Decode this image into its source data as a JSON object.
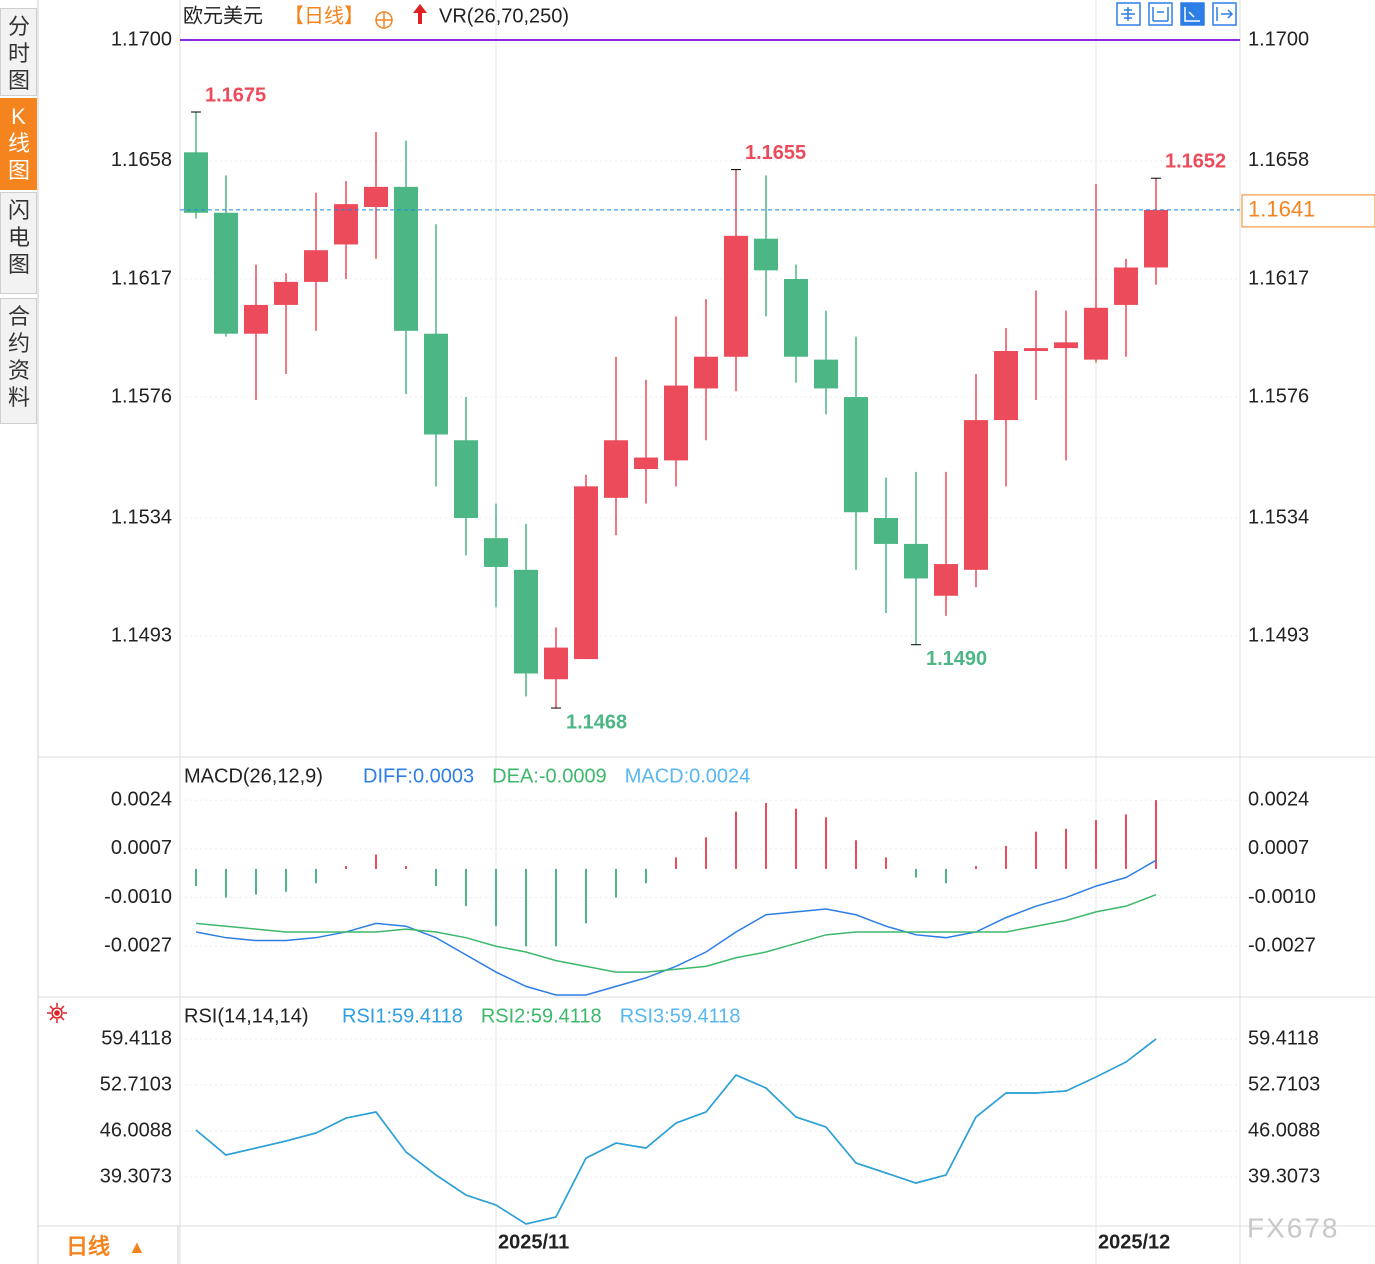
{
  "sidebar_tabs": [
    "分时图",
    "K线图",
    "闪电图",
    "合约资料"
  ],
  "period_tab": "日线",
  "watermark": "FX678",
  "chart_data": [
    {
      "type": "candlestick",
      "title": "欧元美元",
      "period": "【日线】",
      "indicator": "VR(26,70,250)",
      "ylim": [
        1.1451,
        1.17
      ],
      "yticks": [
        {
          "value": 1.17,
          "label": "1.1700"
        },
        1.1658,
        1.1617,
        1.1576,
        1.1534,
        1.1493
      ],
      "open": [
        1.1661,
        1.164,
        1.1598,
        1.1608,
        1.1616,
        1.1629,
        1.1642,
        1.1649,
        1.1598,
        1.1561,
        1.1527,
        1.1516,
        1.1478,
        1.1485,
        1.1541,
        1.1551,
        1.1554,
        1.1579,
        1.159,
        1.1631,
        1.1617,
        1.1589,
        1.1576,
        1.1534,
        1.1525,
        1.1507,
        1.1516,
        1.1568,
        1.1592,
        1.1593,
        1.1589,
        1.1608,
        1.1621
      ],
      "high": [
        1.1675,
        1.1653,
        1.1622,
        1.1619,
        1.1647,
        1.1651,
        1.1668,
        1.1665,
        1.1636,
        1.1576,
        1.1539,
        1.1532,
        1.1496,
        1.1549,
        1.159,
        1.1582,
        1.1604,
        1.161,
        1.1655,
        1.1653,
        1.1622,
        1.1606,
        1.1597,
        1.1548,
        1.155,
        1.155,
        1.1584,
        1.16,
        1.1613,
        1.1606,
        1.165,
        1.1624,
        1.1652
      ],
      "low": [
        1.1638,
        1.1597,
        1.1575,
        1.1584,
        1.1599,
        1.1617,
        1.1624,
        1.1577,
        1.1545,
        1.1521,
        1.1503,
        1.1472,
        1.1468,
        1.1485,
        1.1528,
        1.1539,
        1.1545,
        1.1561,
        1.1578,
        1.1604,
        1.1581,
        1.157,
        1.1516,
        1.1501,
        1.149,
        1.15,
        1.151,
        1.1545,
        1.1575,
        1.1554,
        1.1588,
        1.159,
        1.1615
      ],
      "close": [
        1.164,
        1.1598,
        1.1608,
        1.1616,
        1.1627,
        1.1643,
        1.1649,
        1.1599,
        1.1563,
        1.1534,
        1.1517,
        1.148,
        1.1489,
        1.1545,
        1.1561,
        1.1555,
        1.158,
        1.159,
        1.1632,
        1.162,
        1.159,
        1.1579,
        1.1536,
        1.1525,
        1.1513,
        1.1518,
        1.1568,
        1.1592,
        1.1593,
        1.1595,
        1.1607,
        1.1621,
        1.1641
      ],
      "high_value_labels": [
        "1.1675",
        null,
        null,
        null,
        null,
        null,
        null,
        null,
        null,
        null,
        null,
        null,
        null,
        null,
        null,
        null,
        null,
        null,
        "1.1655",
        null,
        null,
        null,
        null,
        null,
        null,
        null,
        null,
        null,
        null,
        null,
        null,
        null,
        "1.1652"
      ],
      "low_value_labels": [
        null,
        null,
        null,
        null,
        null,
        null,
        null,
        null,
        null,
        null,
        null,
        null,
        "1.1468",
        null,
        null,
        null,
        null,
        null,
        null,
        null,
        null,
        null,
        null,
        null,
        "1.1490",
        null,
        null,
        null,
        null,
        null,
        null,
        null,
        null
      ],
      "up_color": "#eb4b5a",
      "down_color": "#4cb784",
      "last_price": 1.1641,
      "last_price_color": "#f5841f",
      "top_line_color": "#8a2be2"
    },
    {
      "type": "macd",
      "title": "MACD(26,12,9)",
      "ylim": [
        -0.0044,
        0.0038
      ],
      "yticks": [
        0.0024,
        0.0007,
        {
          "value": -0.001,
          "label": "-0.0010"
        },
        -0.0027
      ],
      "series": [
        {
          "name": "DIFF:0.0003",
          "color": "#2d7ee6",
          "values": [
            -0.0022,
            -0.0024,
            -0.0025,
            -0.0025,
            -0.0024,
            -0.0022,
            -0.0019,
            -0.002,
            -0.0024,
            -0.003,
            -0.0036,
            -0.0041,
            -0.0044,
            -0.0044,
            -0.0041,
            -0.0038,
            -0.0034,
            -0.0029,
            -0.0022,
            -0.0016,
            -0.0015,
            -0.0014,
            -0.0016,
            -0.002,
            -0.0023,
            -0.0024,
            -0.0022,
            -0.0017,
            -0.0013,
            -0.001,
            -0.0006,
            -0.0003,
            0.0003
          ]
        },
        {
          "name": "DEA:-0.0009",
          "color": "#3db86b",
          "values": [
            -0.0019,
            -0.002,
            -0.0021,
            -0.0022,
            -0.0022,
            -0.0022,
            -0.0022,
            -0.0021,
            -0.0022,
            -0.0024,
            -0.0027,
            -0.0029,
            -0.0032,
            -0.0034,
            -0.0036,
            -0.0036,
            -0.0035,
            -0.0034,
            -0.0031,
            -0.0029,
            -0.0026,
            -0.0023,
            -0.0022,
            -0.0022,
            -0.0022,
            -0.0022,
            -0.0022,
            -0.0022,
            -0.002,
            -0.0018,
            -0.0015,
            -0.0013,
            -0.0009
          ]
        }
      ],
      "histogram": {
        "name": "MACD:0.0024",
        "color": "#58b7f0",
        "up_color": "#eb4b5a",
        "down_color": "#4cb784",
        "values": [
          -0.0006,
          -0.001,
          -0.0009,
          -0.0008,
          -0.0005,
          0.0001,
          0.0005,
          0.0001,
          -0.0006,
          -0.0013,
          -0.002,
          -0.0027,
          -0.0027,
          -0.0019,
          -0.001,
          -0.0005,
          0.0004,
          0.0011,
          0.002,
          0.0023,
          0.0021,
          0.0018,
          0.001,
          0.0004,
          -0.0003,
          -0.0005,
          0.0001,
          0.0008,
          0.0013,
          0.0014,
          0.0017,
          0.0019,
          0.0024
        ]
      }
    },
    {
      "type": "line",
      "title": "RSI(14,14,14)",
      "ylim": [
        32.17,
        65.39
      ],
      "yticks": [
        59.4118,
        52.7103,
        46.0088,
        39.3073
      ],
      "categories": [
        null,
        null,
        null,
        null,
        null,
        null,
        null,
        null,
        null,
        null,
        "2025/11",
        null,
        null,
        null,
        null,
        null,
        null,
        null,
        null,
        null,
        null,
        null,
        null,
        null,
        null,
        null,
        null,
        null,
        null,
        null,
        "2025/12",
        null,
        null
      ],
      "series": [
        {
          "name": "RSI3:59.4118",
          "color": "#58b7f0",
          "values": [
            46.15,
            42.51,
            43.53,
            44.55,
            45.72,
            47.9,
            48.78,
            42.95,
            39.6,
            36.68,
            35.23,
            32.46,
            33.48,
            42.07,
            44.26,
            43.53,
            47.17,
            48.78,
            54.17,
            52.27,
            48.05,
            46.59,
            41.35,
            39.89,
            38.43,
            39.6,
            48.05,
            51.54,
            51.54,
            51.84,
            53.88,
            56.06,
            59.4118
          ]
        },
        {
          "name": "RSI2:59.4118",
          "color": "#3db86b",
          "values": [
            46.15,
            42.51,
            43.53,
            44.55,
            45.72,
            47.9,
            48.78,
            42.95,
            39.6,
            36.68,
            35.23,
            32.46,
            33.48,
            42.07,
            44.26,
            43.53,
            47.17,
            48.78,
            54.17,
            52.27,
            48.05,
            46.59,
            41.35,
            39.89,
            38.43,
            39.6,
            48.05,
            51.54,
            51.54,
            51.84,
            53.88,
            56.06,
            59.4118
          ]
        },
        {
          "name": "RSI1:59.4118",
          "color": "#2e9fe0",
          "values": [
            46.15,
            42.51,
            43.53,
            44.55,
            45.72,
            47.9,
            48.78,
            42.95,
            39.6,
            36.68,
            35.23,
            32.46,
            33.48,
            42.07,
            44.26,
            43.53,
            47.17,
            48.78,
            54.17,
            52.27,
            48.05,
            46.59,
            41.35,
            39.89,
            38.43,
            39.6,
            48.05,
            51.54,
            51.54,
            51.84,
            53.88,
            56.06,
            59.4118
          ]
        }
      ]
    }
  ]
}
